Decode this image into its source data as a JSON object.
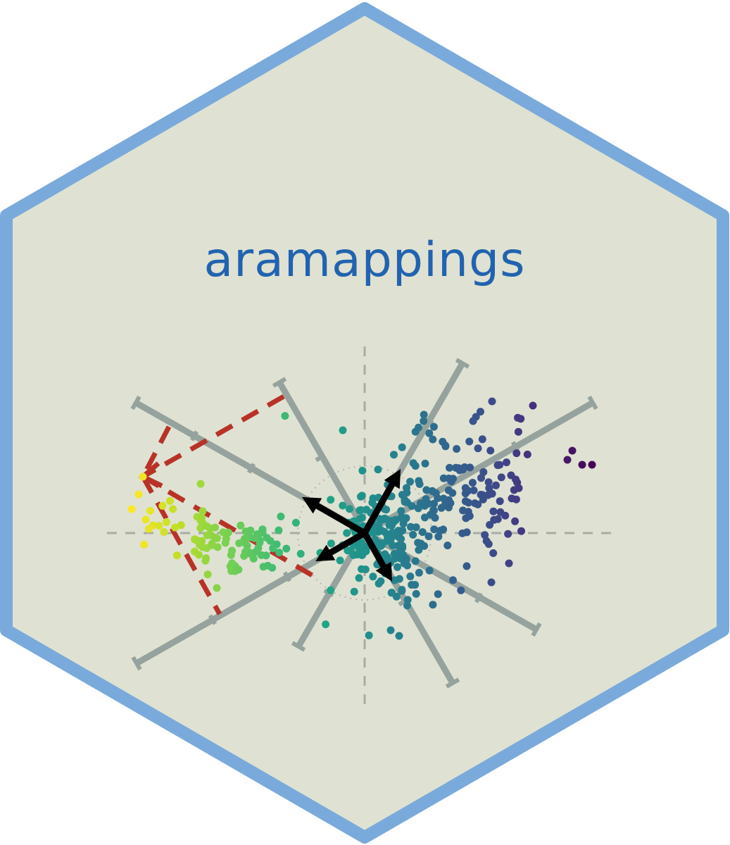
{
  "logo": {
    "title": "aramappings",
    "colors": {
      "border": "#7aaadb",
      "fill": "#dfe2d2",
      "title": "#2163b0",
      "axis": "#95a29d",
      "guide_lines": "#a8aca3",
      "arrow": "#000000",
      "highlight_dashed": "#b83228",
      "colormap": "viridis"
    },
    "icon_names": [
      "hexagon-sticker",
      "biplot-axes",
      "scatter-points",
      "projection-arrows"
    ]
  }
}
